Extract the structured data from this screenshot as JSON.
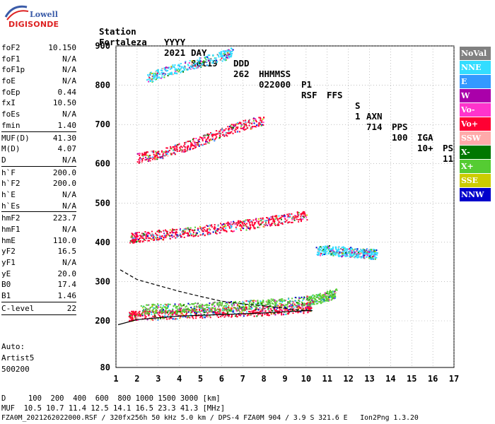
{
  "logo": {
    "line1": "Lowell",
    "line2": "DIGISONDE"
  },
  "header": {
    "labels": [
      "Station",
      "YYYY",
      "DAY",
      "DDD",
      "HHMMSS",
      "P1",
      "FFS",
      "S",
      "AXN",
      "PPS",
      "IGA",
      "PS"
    ],
    "values": [
      "Fortaleza",
      "2021",
      "Set19",
      "262",
      "022000",
      "RSF",
      "",
      "1",
      "714",
      "100",
      "10+",
      "11"
    ]
  },
  "params": {
    "group1": [
      {
        "k": "foF2",
        "v": "10.150"
      },
      {
        "k": "foF1",
        "v": "N/A"
      },
      {
        "k": "foF1p",
        "v": "N/A"
      },
      {
        "k": "foE",
        "v": "N/A"
      },
      {
        "k": "foEp",
        "v": "0.44"
      },
      {
        "k": "fxI",
        "v": "10.50"
      },
      {
        "k": "foEs",
        "v": "N/A"
      },
      {
        "k": "fmin",
        "v": "1.40"
      }
    ],
    "group2": [
      {
        "k": "MUF(D)",
        "v": "41.30"
      },
      {
        "k": "M(D)",
        "v": "4.07"
      },
      {
        "k": "D",
        "v": "N/A"
      }
    ],
    "group3": [
      {
        "k": "h`F",
        "v": "200.0"
      },
      {
        "k": "h`F2",
        "v": "200.0"
      },
      {
        "k": "h`E",
        "v": "N/A"
      },
      {
        "k": "h`Es",
        "v": "N/A"
      }
    ],
    "group4": [
      {
        "k": "hmF2",
        "v": "223.7"
      },
      {
        "k": "hmF1",
        "v": "N/A"
      },
      {
        "k": "hmE",
        "v": "110.0"
      },
      {
        "k": "yF2",
        "v": "16.5"
      },
      {
        "k": "yF1",
        "v": "N/A"
      },
      {
        "k": "yE",
        "v": "20.0"
      },
      {
        "k": "B0",
        "v": "17.4"
      },
      {
        "k": "B1",
        "v": "1.46"
      }
    ],
    "group5": [
      {
        "k": "C-level",
        "v": "22"
      }
    ]
  },
  "auto": {
    "line1": "Auto:",
    "line2": "Artist5",
    "line3": "500200"
  },
  "legend": [
    {
      "name": "NoVal",
      "color": "#808080"
    },
    {
      "name": "NNE",
      "color": "#33ddff"
    },
    {
      "name": "E",
      "color": "#3399ff"
    },
    {
      "name": "W",
      "color": "#aa00aa"
    },
    {
      "name": "Vo-",
      "color": "#ff33cc"
    },
    {
      "name": "Vo+",
      "color": "#ff0033"
    },
    {
      "name": "SSW",
      "color": "#ffaaaa"
    },
    {
      "name": "X-",
      "color": "#007700"
    },
    {
      "name": "X+",
      "color": "#55cc33"
    },
    {
      "name": "SSE",
      "color": "#cccc00"
    },
    {
      "name": "NNW",
      "color": "#0000cc"
    }
  ],
  "footer": {
    "line1": "D     100  200  400  600  800 1000 1500 3000 [km]",
    "line2": "MUF  10.5 10.7 11.4 12.5 14.1 16.5 23.3 41.3 [MHz]",
    "line3": "FZA0M_2021262022000.RSF / 320fx256h 50 kHz 5.0 km / DPS-4 FZA0M 904 / 3.9 S 321.6 E   Ion2Png 1.3.20"
  },
  "chart_data": {
    "type": "scatter",
    "xlim": [
      1,
      17
    ],
    "ylim": [
      80,
      900
    ],
    "x_ticks": [
      1,
      2,
      3,
      4,
      5,
      6,
      7,
      8,
      9,
      10,
      11,
      12,
      13,
      14,
      15,
      16,
      17
    ],
    "y_ticks": [
      80,
      200,
      300,
      400,
      500,
      600,
      700,
      800,
      900
    ],
    "grid": true,
    "profile_solid": [
      [
        1.1,
        190
      ],
      [
        2,
        203
      ],
      [
        3,
        208
      ],
      [
        4,
        212
      ],
      [
        5,
        214
      ],
      [
        6,
        216
      ],
      [
        7,
        218
      ],
      [
        8,
        220
      ],
      [
        9,
        223
      ],
      [
        10,
        226
      ],
      [
        10.3,
        226
      ]
    ],
    "profile_dashed": [
      [
        1.2,
        330
      ],
      [
        2,
        305
      ],
      [
        3,
        290
      ],
      [
        4,
        275
      ],
      [
        5,
        262
      ],
      [
        6,
        250
      ],
      [
        7,
        243
      ],
      [
        8,
        238
      ],
      [
        9,
        232
      ],
      [
        10,
        226
      ]
    ],
    "traces": [
      {
        "name": "F2 O-trace",
        "series": "Vo+",
        "x": [
          1.6,
          2,
          3,
          4,
          5,
          6,
          7,
          8,
          9,
          10,
          10.2
        ],
        "y": [
          213,
          214,
          216,
          219,
          221,
          222,
          224,
          227,
          230,
          234,
          240
        ]
      },
      {
        "name": "F2 X-trace",
        "series": "X+",
        "x": [
          2.2,
          3,
          4,
          5,
          6,
          7,
          8,
          9,
          10,
          10.6,
          11,
          11.4
        ],
        "y": [
          230,
          232,
          233,
          235,
          237,
          240,
          243,
          247,
          252,
          258,
          265,
          272
        ]
      },
      {
        "name": "E-like",
        "series": "NNE",
        "x": [
          10.5,
          11,
          11.5,
          12,
          12.5,
          13,
          13.3
        ],
        "y": [
          380,
          382,
          378,
          376,
          374,
          372,
          370
        ]
      },
      {
        "name": "Multi-hop 2F",
        "series": "Vo+",
        "x": [
          1.7,
          2,
          3,
          4,
          5,
          6,
          7,
          8,
          9,
          10
        ],
        "y": [
          412,
          414,
          420,
          425,
          430,
          438,
          445,
          452,
          460,
          470
        ]
      },
      {
        "name": "Multi-hop 3F",
        "series": "Vo+",
        "x": [
          2,
          3,
          4,
          5,
          6,
          7,
          8
        ],
        "y": [
          615,
          625,
          640,
          660,
          680,
          700,
          710
        ]
      },
      {
        "name": "Multi-hop 4F",
        "series": "NNE",
        "x": [
          2.5,
          3,
          4,
          5,
          6,
          6.5
        ],
        "y": [
          820,
          830,
          845,
          860,
          875,
          885
        ]
      }
    ]
  }
}
